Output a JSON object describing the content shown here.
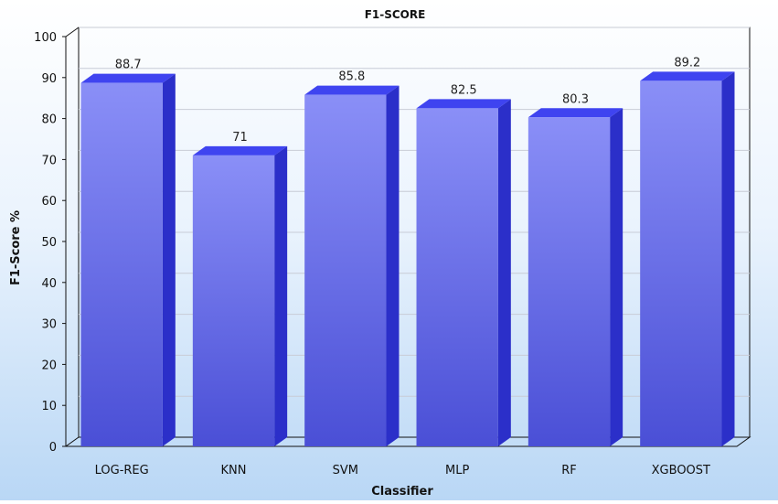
{
  "chart_data": {
    "type": "bar",
    "title": "F1-SCORE",
    "xlabel": "Classifier",
    "ylabel": "F1-Score %",
    "categories": [
      "LOG-REG",
      "KNN",
      "SVM",
      "MLP",
      "RF",
      "XGBOOST"
    ],
    "values": [
      88.7,
      71,
      85.8,
      82.5,
      80.3,
      89.2
    ],
    "value_labels": [
      "88.7",
      "71",
      "85.8",
      "82.5",
      "80.3",
      "89.2"
    ],
    "ylim": [
      0,
      100
    ],
    "yticks": [
      0,
      10,
      20,
      30,
      40,
      50,
      60,
      70,
      80,
      90,
      100
    ],
    "grid": true,
    "legend": "none",
    "style": "3d",
    "colors": {
      "bar_top": "#8a8ff7",
      "bar_bottom": "#4a4fd6",
      "bar_side": "#2b2fc9",
      "bar_cap": "#3f44f0",
      "grid": "#c8ccd6",
      "axis": "#111111"
    }
  }
}
